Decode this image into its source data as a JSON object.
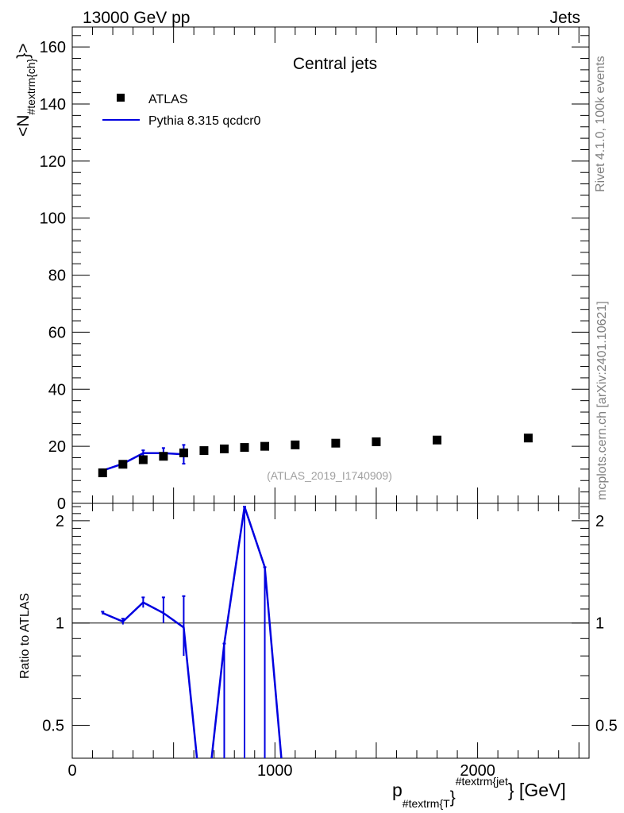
{
  "header": {
    "left": "13000 GeV pp",
    "right": "Jets"
  },
  "side_labels": {
    "rivet": "Rivet 4.1.0,  100k events",
    "mcplots": "mcplots.cern.ch [arXiv:2401.10621]"
  },
  "colors": {
    "data": "#000000",
    "mc": "#0000e0",
    "watermark": "#a0a0a0"
  },
  "chart_data": [
    {
      "type": "scatter",
      "panel": "main",
      "title": "Central jets",
      "watermark": "(ATLAS_2019_I1740909)",
      "xlabel": "p_{#textrm{T}}^{#textrm{jet}} [GeV]",
      "xlabel_main": "p",
      "xlabel_sub": "#textrm{T",
      "xlabel_brace": "}",
      "xlabel_sup": "#textrm{jet",
      "xlabel_unit": "} [GeV]",
      "ylabel": "<N_{#textrm{ch}}>",
      "ylabel_pre": "<N",
      "ylabel_sub": "#textrm{ch}",
      "ylabel_post": "}>",
      "xlim": [
        0,
        2550
      ],
      "ylim": [
        0,
        167
      ],
      "y_ticks": [
        0,
        20,
        40,
        60,
        80,
        100,
        120,
        140,
        160
      ],
      "y_tick_labels": [
        "0",
        "20",
        "40",
        "60",
        "80",
        "100",
        "120",
        "140",
        "160"
      ],
      "legend": {
        "position": "top-left",
        "entries": [
          {
            "label": "ATLAS",
            "marker": "square"
          },
          {
            "label": "Pythia 8.315 qcdcr0",
            "marker": "line"
          }
        ]
      },
      "series": [
        {
          "name": "ATLAS",
          "x": [
            150,
            250,
            350,
            450,
            550,
            650,
            750,
            850,
            950,
            1100,
            1300,
            1500,
            1800,
            2250
          ],
          "y": [
            10.7,
            13.7,
            15.3,
            16.5,
            17.7,
            18.5,
            19.1,
            19.6,
            20.0,
            20.5,
            21.1,
            21.6,
            22.2,
            22.9
          ]
        },
        {
          "name": "Pythia 8.315 qcdcr0",
          "x": [
            150,
            250,
            350,
            450,
            550
          ],
          "y": [
            11.5,
            13.9,
            17.6,
            17.6,
            17.2
          ],
          "yerr": [
            0.4,
            0.4,
            1.0,
            1.8,
            3.3
          ]
        }
      ]
    },
    {
      "type": "line",
      "panel": "ratio",
      "ylabel": "Ratio to ATLAS",
      "xlim": [
        0,
        2550
      ],
      "ylim": [
        0.4,
        2.25
      ],
      "y_scale": "log",
      "reference": 1.0,
      "x_ticks": [
        0,
        1000,
        2000
      ],
      "x_tick_labels": [
        "0",
        "1000",
        "2000"
      ],
      "y_ticks": [
        0.5,
        1,
        2
      ],
      "y_tick_labels": [
        "0.5",
        "1",
        "2"
      ],
      "series": [
        {
          "name": "Pythia 8.315 qcdcr0 / ATLAS",
          "x": [
            150,
            250,
            350,
            450,
            550,
            650,
            750,
            850,
            950,
            1050
          ],
          "y": [
            1.07,
            1.01,
            1.15,
            1.07,
            0.97,
            0.25,
            0.87,
            2.2,
            1.46,
            0.3
          ],
          "yerr_up": [
            0.01,
            0.02,
            0.04,
            0.12,
            0.23,
            0,
            0,
            0,
            0,
            0
          ],
          "yerr_down": [
            0.01,
            0.02,
            0.04,
            0.07,
            0.17,
            0,
            0.5,
            1.8,
            1.1,
            0
          ]
        }
      ]
    }
  ]
}
